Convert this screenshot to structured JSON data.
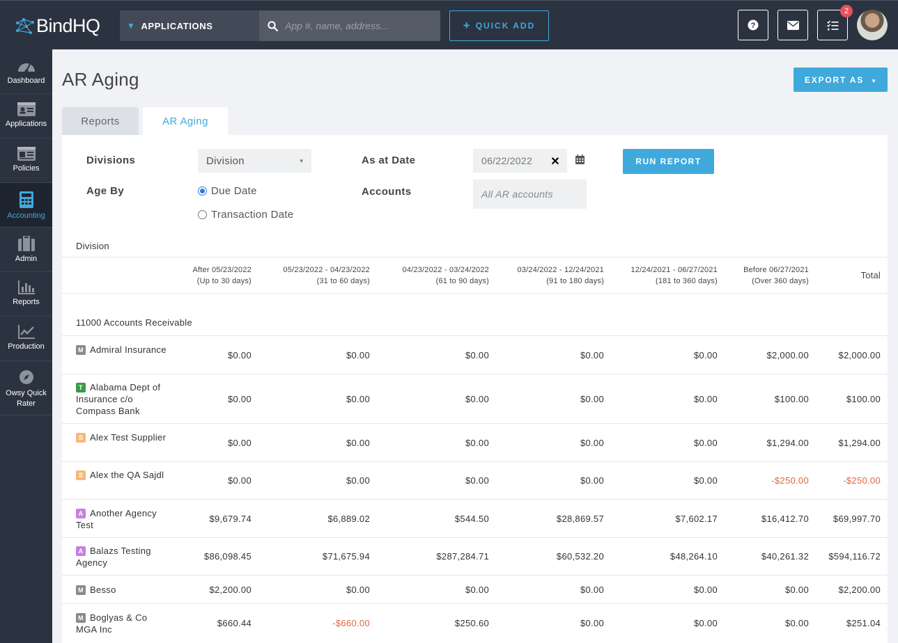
{
  "app": {
    "logo_text": "BindHQ"
  },
  "header": {
    "search_type": "APPLICATIONS",
    "search_placeholder": "App #, name, address...",
    "quick_add_label": "QUICK ADD",
    "tasks_badge": "2"
  },
  "sidebar": {
    "items": [
      {
        "label": "Dashboard",
        "icon": "gauge-icon"
      },
      {
        "label": "Applications",
        "icon": "id-card-icon"
      },
      {
        "label": "Policies",
        "icon": "document-card-icon"
      },
      {
        "label": "Accounting",
        "icon": "calculator-icon",
        "active": true
      },
      {
        "label": "Admin",
        "icon": "briefcase-icon"
      },
      {
        "label": "Reports",
        "icon": "bar-chart-icon"
      },
      {
        "label": "Production",
        "icon": "line-chart-icon"
      },
      {
        "label": "Owsy Quick Rater",
        "icon": "compass-icon"
      }
    ]
  },
  "page": {
    "title": "AR Aging",
    "export_label": "EXPORT AS",
    "tabs": [
      "Reports",
      "AR Aging"
    ]
  },
  "filters": {
    "divisions_label": "Divisions",
    "division_value": "Division",
    "age_by_label": "Age By",
    "age_by_options": [
      "Due Date",
      "Transaction Date"
    ],
    "age_by_selected": "Due Date",
    "as_at_label": "As at Date",
    "as_at_value": "06/22/2022",
    "accounts_label": "Accounts",
    "accounts_placeholder": "All AR accounts",
    "run_label": "RUN REPORT"
  },
  "table": {
    "division_label": "Division",
    "columns": [
      {
        "l1": "After 05/23/2022",
        "l2": "(Up to 30 days)"
      },
      {
        "l1": "05/23/2022 - 04/23/2022",
        "l2": "(31 to 60 days)"
      },
      {
        "l1": "04/23/2022 - 03/24/2022",
        "l2": "(61 to 90 days)"
      },
      {
        "l1": "03/24/2022 - 12/24/2021",
        "l2": "(91 to 180 days)"
      },
      {
        "l1": "12/24/2021 - 06/27/2021",
        "l2": "(181 to 360 days)"
      },
      {
        "l1": "Before 06/27/2021",
        "l2": "(Over 360 days)"
      }
    ],
    "total_label": "Total",
    "group_label": "11000 Accounts Receivable",
    "tag_colors": {
      "M": "#8a8a8a",
      "T": "#3a9a4a",
      "S": "#f5b97a",
      "A": "#c97fe0"
    },
    "rows": [
      {
        "tag": "M",
        "name": "Admiral Insurance",
        "values": [
          "$0.00",
          "$0.00",
          "$0.00",
          "$0.00",
          "$0.00",
          "$2,000.00",
          "$2,000.00"
        ]
      },
      {
        "tag": "T",
        "name": "Alabama Dept of Insurance c/o Compass Bank",
        "values": [
          "$0.00",
          "$0.00",
          "$0.00",
          "$0.00",
          "$0.00",
          "$100.00",
          "$100.00"
        ]
      },
      {
        "tag": "S",
        "name": "Alex Test Supplier",
        "values": [
          "$0.00",
          "$0.00",
          "$0.00",
          "$0.00",
          "$0.00",
          "$1,294.00",
          "$1,294.00"
        ]
      },
      {
        "tag": "S",
        "name": "Alex the QA Sajdl",
        "values": [
          "$0.00",
          "$0.00",
          "$0.00",
          "$0.00",
          "$0.00",
          "-$250.00",
          "-$250.00"
        ]
      },
      {
        "tag": "A",
        "name": "Another Agency Test",
        "values": [
          "$9,679.74",
          "$6,889.02",
          "$544.50",
          "$28,869.57",
          "$7,602.17",
          "$16,412.70",
          "$69,997.70"
        ]
      },
      {
        "tag": "A",
        "name": "Balazs Testing Agency",
        "values": [
          "$86,098.45",
          "$71,675.94",
          "$287,284.71",
          "$60,532.20",
          "$48,264.10",
          "$40,261.32",
          "$594,116.72"
        ]
      },
      {
        "tag": "M",
        "name": "Besso",
        "values": [
          "$2,200.00",
          "$0.00",
          "$0.00",
          "$0.00",
          "$0.00",
          "$0.00",
          "$2,200.00"
        ]
      },
      {
        "tag": "M",
        "name": "Boglyas & Co MGA Inc",
        "values": [
          "$660.44",
          "-$660.00",
          "$250.60",
          "$0.00",
          "$0.00",
          "$0.00",
          "$251.04"
        ]
      }
    ]
  }
}
